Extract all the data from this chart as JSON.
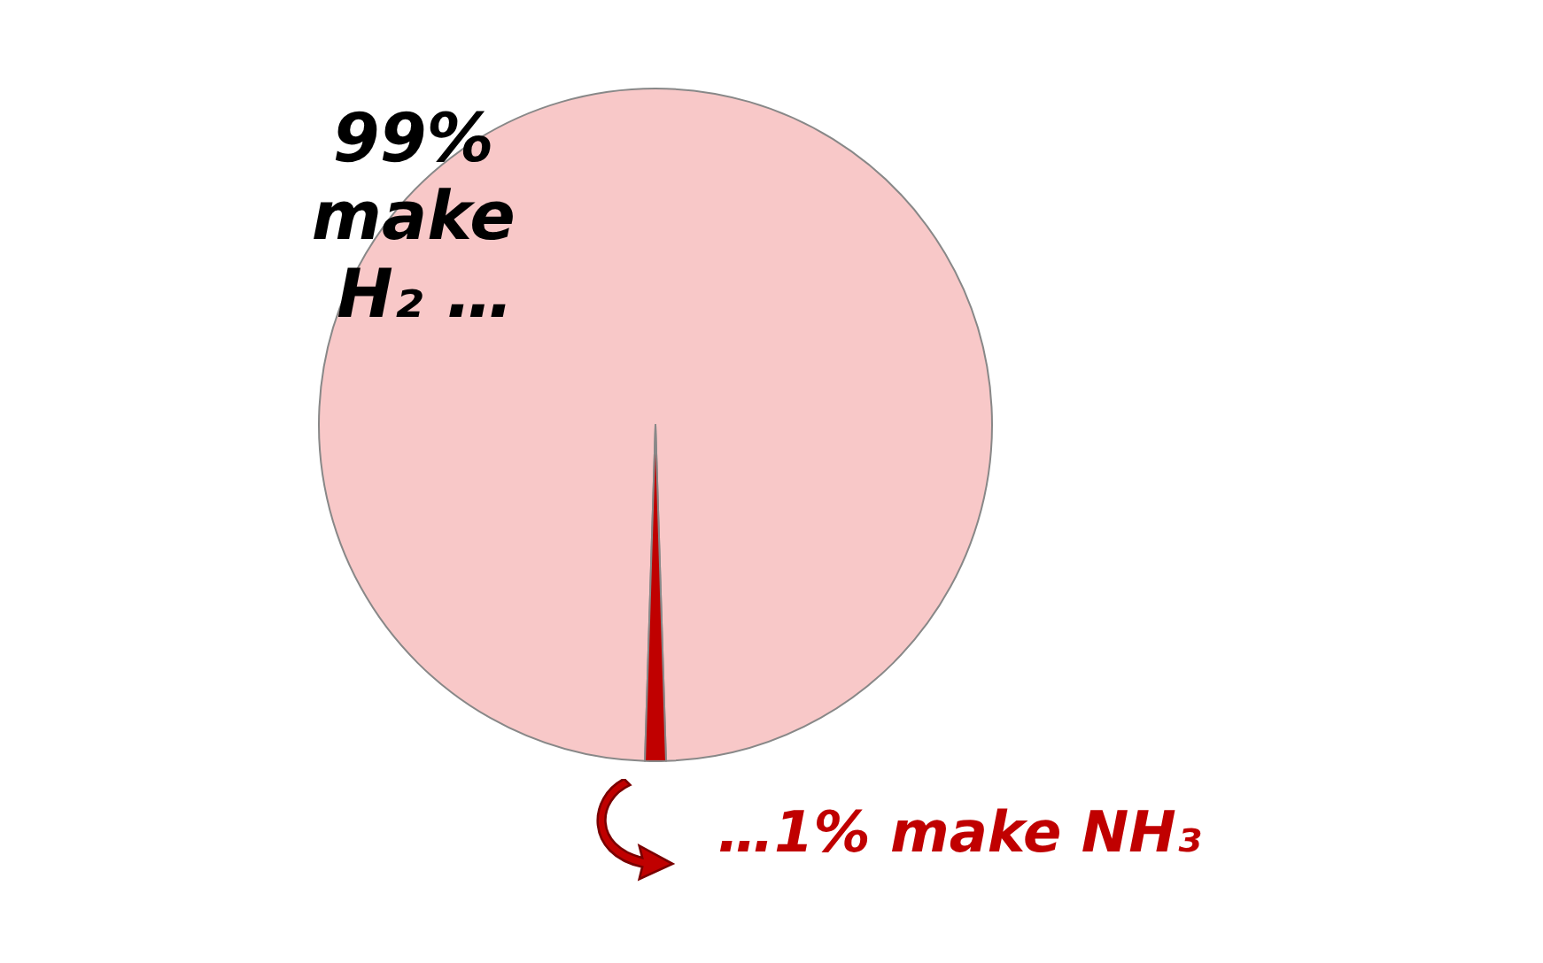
{
  "chart_data": {
    "type": "pie",
    "categories": [
      "99% make H₂ …",
      "…1% make NH₃"
    ],
    "values": [
      99,
      1
    ],
    "colors": [
      "#f8c8c8",
      "#c00000"
    ]
  }
}
